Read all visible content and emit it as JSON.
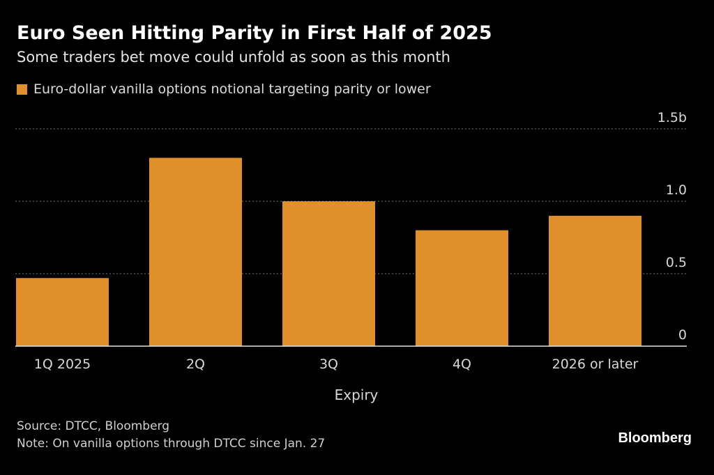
{
  "chart_data": {
    "type": "bar",
    "title": "Euro Seen Hitting Parity in First Half of 2025",
    "subtitle": "Some traders bet move could unfold as soon as this month",
    "legend": [
      "Euro-dollar vanilla options notional targeting parity or lower"
    ],
    "legend_placement": "top-left",
    "categories": [
      "1Q 2025",
      "2Q",
      "3Q",
      "4Q",
      "2026 or later"
    ],
    "values": [
      0.47,
      1.3,
      1.0,
      0.8,
      0.9
    ],
    "units": "b",
    "xlabel": "Expiry",
    "ylabel": "",
    "ylim": [
      0,
      1.5
    ],
    "y_ticks": [
      0,
      0.5,
      1.0,
      1.5
    ],
    "y_tick_labels": [
      "0",
      "0.5",
      "1.0",
      "1.5b"
    ],
    "y_axis_position": "right",
    "grid": true
  },
  "footer": {
    "source": "Source: DTCC, Bloomberg",
    "note": "Note: On vanilla options through DTCC since Jan. 27"
  },
  "brand": "Bloomberg",
  "colors": {
    "background": "#000000",
    "bar": "#e0902a",
    "grid": "#7a7a7a",
    "text": "#ffffff",
    "muted_text": "#d0d0d0"
  }
}
